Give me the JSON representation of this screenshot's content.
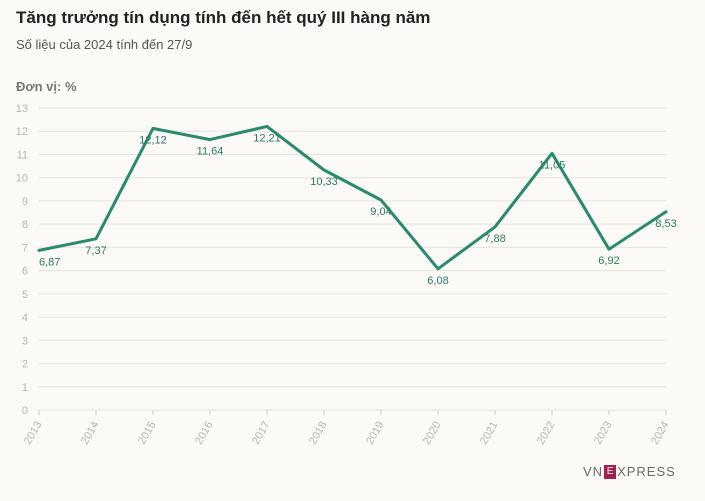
{
  "title": "Tăng trưởng tín dụng tính đến hết quý III hàng năm",
  "subtitle": "Số liệu của 2024 tính đến 27/9",
  "unit_label": "Đơn vị: %",
  "brand": {
    "pre": "VN",
    "box": "E",
    "post": "XPRESS"
  },
  "colors": {
    "line": "#2a8a6e",
    "grid": "#e6e3dc",
    "axis_text": "#b5b5b5",
    "background": "#fbfaf6"
  },
  "chart_data": {
    "type": "line",
    "categories": [
      "2013",
      "2014",
      "2015",
      "2016",
      "2017",
      "2018",
      "2019",
      "2020",
      "2021",
      "2022",
      "2023",
      "2024"
    ],
    "series": [
      {
        "values": [
          6.87,
          7.37,
          12.12,
          11.64,
          12.21,
          10.33,
          9.04,
          6.08,
          7.88,
          11.05,
          6.92,
          8.53
        ]
      }
    ],
    "data_labels": [
      "6,87",
      "7,37",
      "12,12",
      "11,64",
      "12,21",
      "10,33",
      "9,04",
      "6,08",
      "7,88",
      "11,05",
      "6,92",
      "8,53"
    ],
    "ylim": [
      0,
      13
    ],
    "yticks": [
      0,
      1,
      2,
      3,
      4,
      5,
      6,
      7,
      8,
      9,
      10,
      11,
      12,
      13
    ],
    "grid": true,
    "xlabel": "",
    "ylabel": ""
  }
}
